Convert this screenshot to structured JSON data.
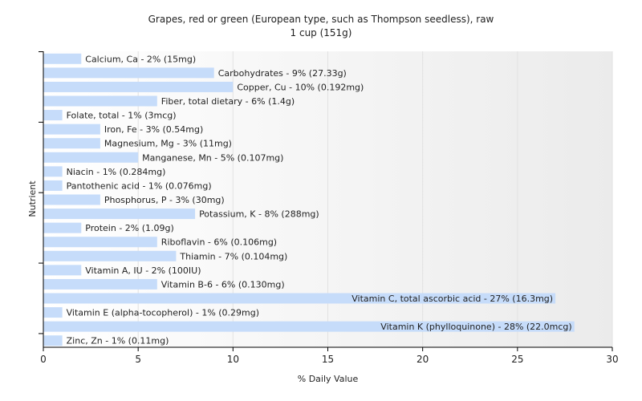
{
  "chart_data": {
    "type": "bar",
    "orientation": "horizontal",
    "title": "Grapes, red or green (European type, such as Thompson seedless), raw",
    "subtitle": "1 cup (151g)",
    "xlabel": "% Daily Value",
    "ylabel": "Nutrient",
    "xlim": [
      0,
      30
    ],
    "xticks": [
      0,
      5,
      10,
      15,
      20,
      25,
      30
    ],
    "grid": false,
    "bar_color": "#c6dcfa",
    "categories": [
      "Calcium, Ca",
      "Carbohydrates",
      "Copper, Cu",
      "Fiber, total dietary",
      "Folate, total",
      "Iron, Fe",
      "Magnesium, Mg",
      "Manganese, Mn",
      "Niacin",
      "Pantothenic acid",
      "Phosphorus, P",
      "Potassium, K",
      "Protein",
      "Riboflavin",
      "Thiamin",
      "Vitamin A, IU",
      "Vitamin B-6",
      "Vitamin C, total ascorbic acid",
      "Vitamin E (alpha-tocopherol)",
      "Vitamin K (phylloquinone)",
      "Zinc, Zn"
    ],
    "values": [
      2,
      9,
      10,
      6,
      1,
      3,
      3,
      5,
      1,
      1,
      3,
      8,
      2,
      6,
      7,
      2,
      6,
      27,
      1,
      28,
      1
    ],
    "labels": [
      "Calcium, Ca - 2% (15mg)",
      "Carbohydrates - 9% (27.33g)",
      "Copper, Cu - 10% (0.192mg)",
      "Fiber, total dietary - 6% (1.4g)",
      "Folate, total - 1% (3mcg)",
      "Iron, Fe - 3% (0.54mg)",
      "Magnesium, Mg - 3% (11mg)",
      "Manganese, Mn - 5% (0.107mg)",
      "Niacin - 1% (0.284mg)",
      "Pantothenic acid - 1% (0.076mg)",
      "Phosphorus, P - 3% (30mg)",
      "Potassium, K - 8% (288mg)",
      "Protein - 2% (1.09g)",
      "Riboflavin - 6% (0.106mg)",
      "Thiamin - 7% (0.104mg)",
      "Vitamin A, IU - 2% (100IU)",
      "Vitamin B-6 - 6% (0.130mg)",
      "Vitamin C, total ascorbic acid - 27% (16.3mg)",
      "Vitamin E (alpha-tocopherol) - 1% (0.29mg)",
      "Vitamin K (phylloquinone) - 28% (22.0mcg)",
      "Zinc, Zn - 1% (0.11mg)"
    ]
  }
}
